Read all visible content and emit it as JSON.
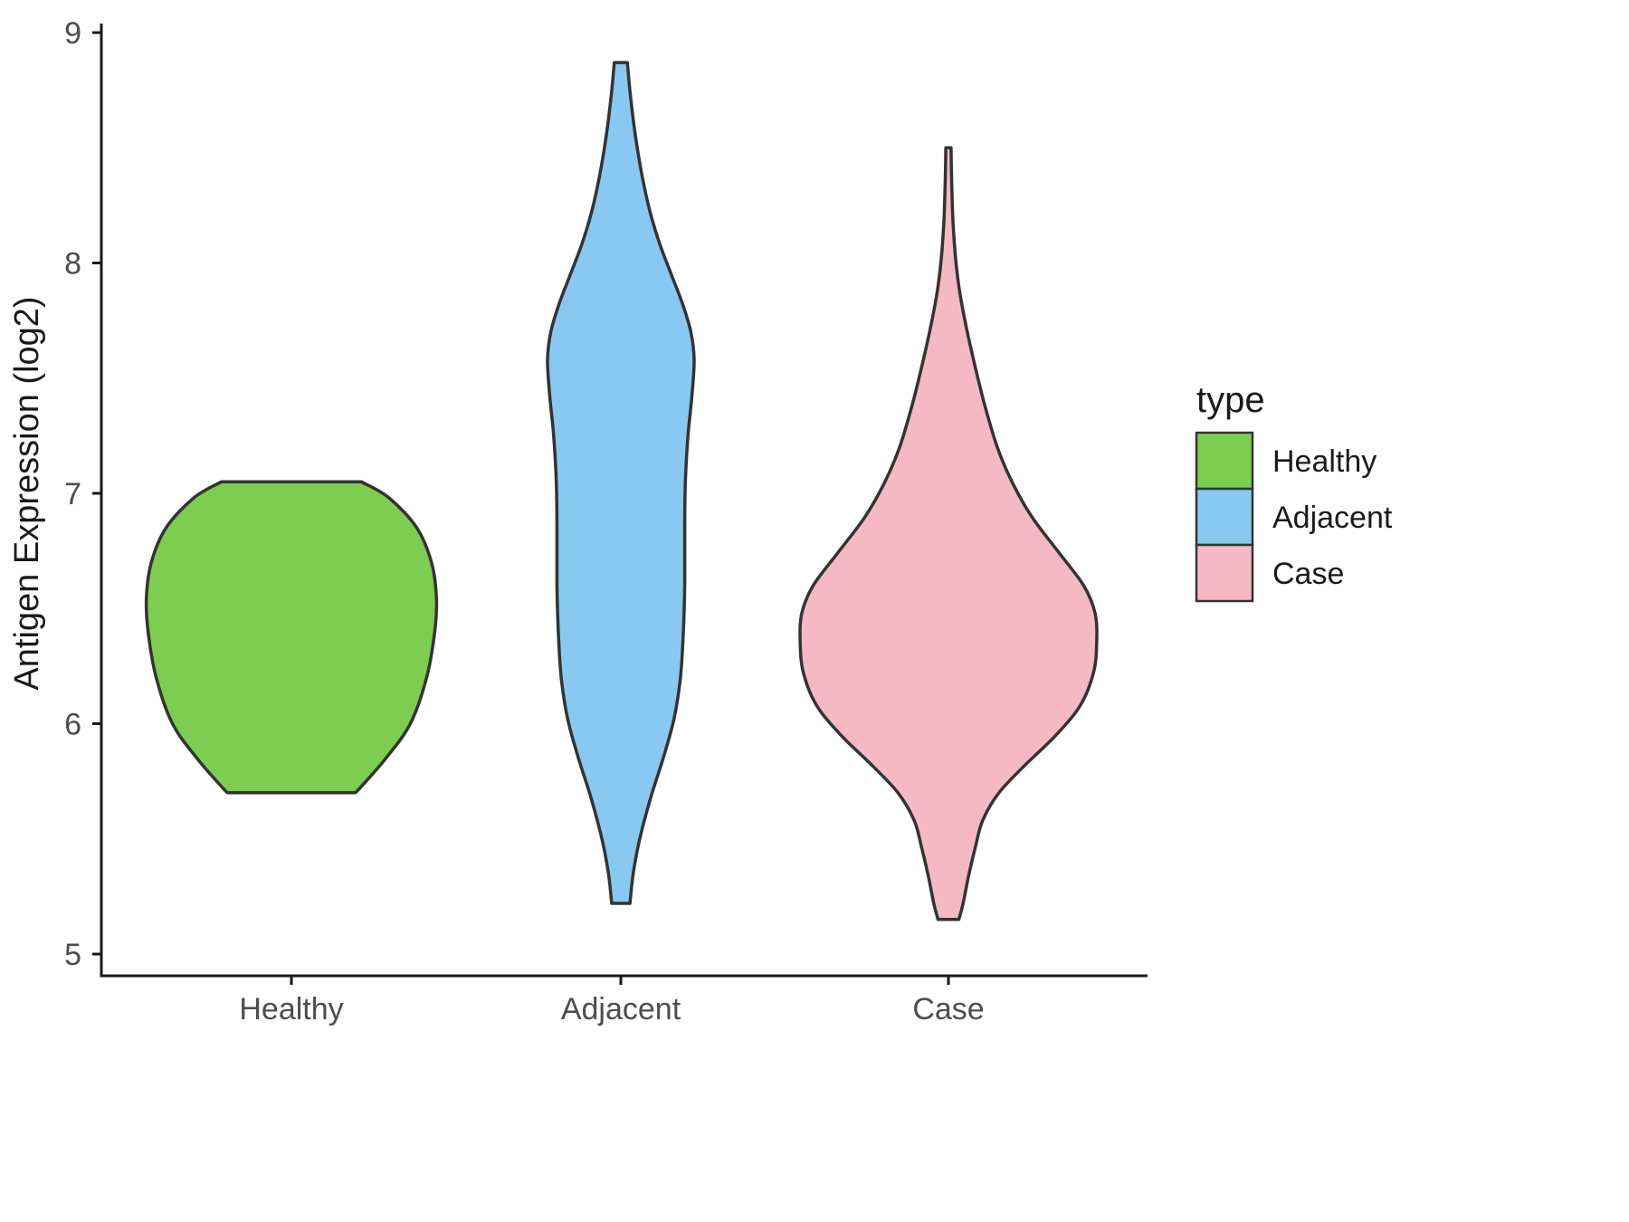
{
  "figure": {
    "background": "#FFFFFF"
  },
  "chart_data": {
    "type": "violin",
    "title": "",
    "xlabel": "",
    "ylabel": "Antigen Expression (log2)",
    "categories": [
      "Healthy",
      "Adjacent",
      "Case"
    ],
    "y_ticks": [
      5,
      6,
      7,
      8,
      9
    ],
    "ylim": [
      5,
      9
    ],
    "grid": false,
    "outline_color": "#333333",
    "axis_line_color": "#1a1a1a",
    "axis_text_color": "#4d4d4d",
    "legend": {
      "title": "type",
      "position": "right",
      "entries": [
        {
          "label": "Healthy",
          "color": "#7CCD50"
        },
        {
          "label": "Adjacent",
          "color": "#89C8F0"
        },
        {
          "label": "Case",
          "color": "#F4B9C4"
        }
      ]
    },
    "series": [
      {
        "name": "Healthy",
        "color": "#7CCD50",
        "range": [
          5.7,
          7.05
        ],
        "widest_at": 6.5,
        "profile": [
          [
            7.05,
            0.215
          ],
          [
            6.98,
            0.3
          ],
          [
            6.85,
            0.385
          ],
          [
            6.7,
            0.43
          ],
          [
            6.55,
            0.445
          ],
          [
            6.4,
            0.44
          ],
          [
            6.2,
            0.415
          ],
          [
            6.0,
            0.365
          ],
          [
            5.85,
            0.29
          ],
          [
            5.72,
            0.21
          ],
          [
            5.7,
            0.195
          ]
        ]
      },
      {
        "name": "Adjacent",
        "color": "#89C8F0",
        "range": [
          5.2,
          8.87
        ],
        "widest_at": 7.6,
        "profile": [
          [
            8.87,
            0.02
          ],
          [
            8.72,
            0.03
          ],
          [
            8.55,
            0.045
          ],
          [
            8.38,
            0.065
          ],
          [
            8.22,
            0.09
          ],
          [
            8.08,
            0.12
          ],
          [
            7.95,
            0.155
          ],
          [
            7.82,
            0.19
          ],
          [
            7.7,
            0.215
          ],
          [
            7.58,
            0.225
          ],
          [
            7.42,
            0.218
          ],
          [
            7.25,
            0.206
          ],
          [
            7.05,
            0.198
          ],
          [
            6.85,
            0.196
          ],
          [
            6.6,
            0.196
          ],
          [
            6.4,
            0.192
          ],
          [
            6.2,
            0.183
          ],
          [
            6.02,
            0.163
          ],
          [
            5.85,
            0.13
          ],
          [
            5.68,
            0.092
          ],
          [
            5.5,
            0.058
          ],
          [
            5.35,
            0.038
          ],
          [
            5.22,
            0.028
          ]
        ]
      },
      {
        "name": "Case",
        "color": "#F4B9C4",
        "range": [
          5.15,
          8.5
        ],
        "widest_at": 6.35,
        "profile": [
          [
            8.5,
            0.008
          ],
          [
            8.35,
            0.01
          ],
          [
            8.18,
            0.014
          ],
          [
            8.02,
            0.022
          ],
          [
            7.88,
            0.034
          ],
          [
            7.72,
            0.055
          ],
          [
            7.55,
            0.082
          ],
          [
            7.38,
            0.112
          ],
          [
            7.2,
            0.15
          ],
          [
            7.05,
            0.195
          ],
          [
            6.9,
            0.255
          ],
          [
            6.75,
            0.335
          ],
          [
            6.6,
            0.415
          ],
          [
            6.48,
            0.45
          ],
          [
            6.35,
            0.455
          ],
          [
            6.22,
            0.445
          ],
          [
            6.08,
            0.405
          ],
          [
            5.95,
            0.33
          ],
          [
            5.82,
            0.235
          ],
          [
            5.7,
            0.155
          ],
          [
            5.58,
            0.105
          ],
          [
            5.46,
            0.082
          ],
          [
            5.34,
            0.062
          ],
          [
            5.22,
            0.045
          ],
          [
            5.15,
            0.032
          ]
        ]
      }
    ]
  }
}
